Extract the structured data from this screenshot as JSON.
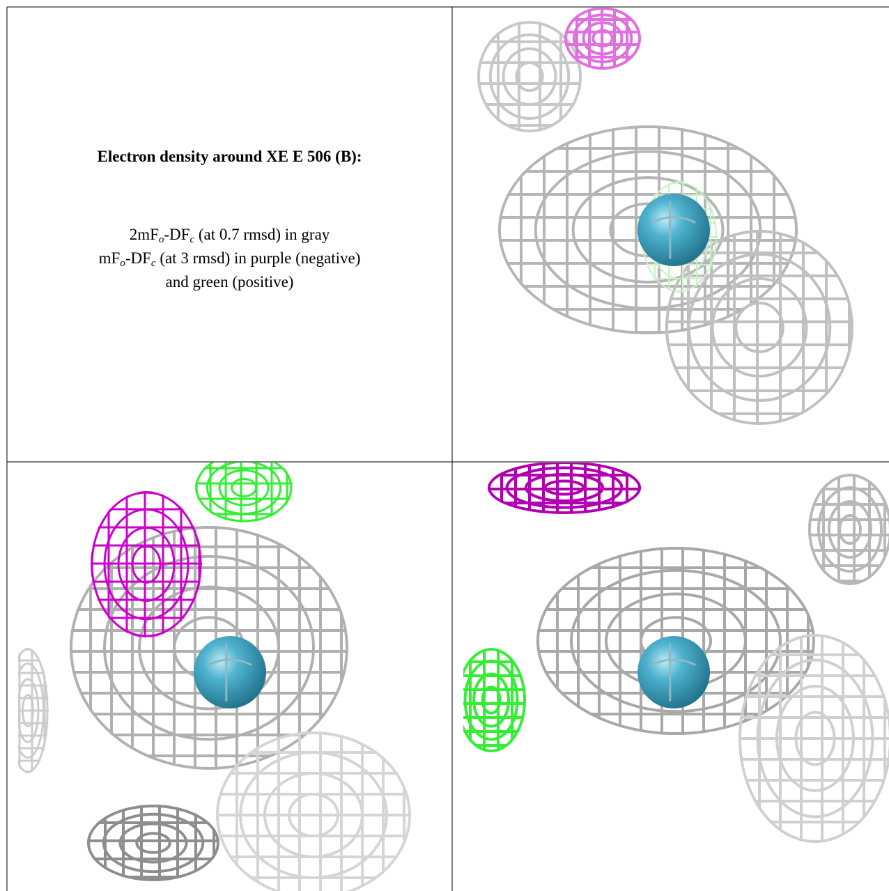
{
  "caption": {
    "title": "Electron density around XE E 506 (B):",
    "lines": [
      [
        {
          "text": "2mF"
        },
        {
          "text": "o",
          "sub": true
        },
        {
          "text": "-DF"
        },
        {
          "text": "c",
          "sub": true
        },
        {
          "text": " (at 0.7 rmsd) in gray"
        }
      ],
      [
        {
          "text": "mF"
        },
        {
          "text": "o",
          "sub": true
        },
        {
          "text": "-DF"
        },
        {
          "text": "c",
          "sub": true
        },
        {
          "text": " (at 3 rmsd) in purple (negative)"
        }
      ],
      [
        {
          "text": "and green (positive)"
        }
      ]
    ]
  }
}
